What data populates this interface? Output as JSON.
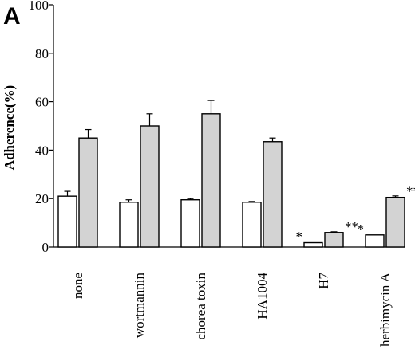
{
  "panel_label": "A",
  "chart_data": {
    "type": "bar",
    "ylabel": "Adherence(%)",
    "xlabel": "",
    "ylim": [
      0,
      100
    ],
    "yticks": [
      "0",
      "20",
      "40",
      "60",
      "80",
      "100"
    ],
    "categories": [
      "none",
      "wortmannin",
      "chorea toxin",
      "HA1004",
      "H7",
      "herbimycin A"
    ],
    "series": [
      {
        "fill": "#ffffff",
        "values": [
          21,
          18.5,
          19.5,
          18.5,
          1.8,
          5
        ],
        "errors": [
          2,
          1,
          0.5,
          0.3,
          0,
          0
        ],
        "annotations": [
          "",
          "",
          "",
          "",
          "*",
          "*"
        ]
      },
      {
        "fill": "#d3d3d3",
        "values": [
          45,
          50,
          55,
          43.5,
          6,
          20.5
        ],
        "errors": [
          3.5,
          5,
          5.5,
          1.5,
          0.3,
          0.6
        ],
        "annotations": [
          "",
          "",
          "",
          "",
          "**",
          "**"
        ]
      }
    ],
    "grid": false,
    "legend": "none"
  }
}
